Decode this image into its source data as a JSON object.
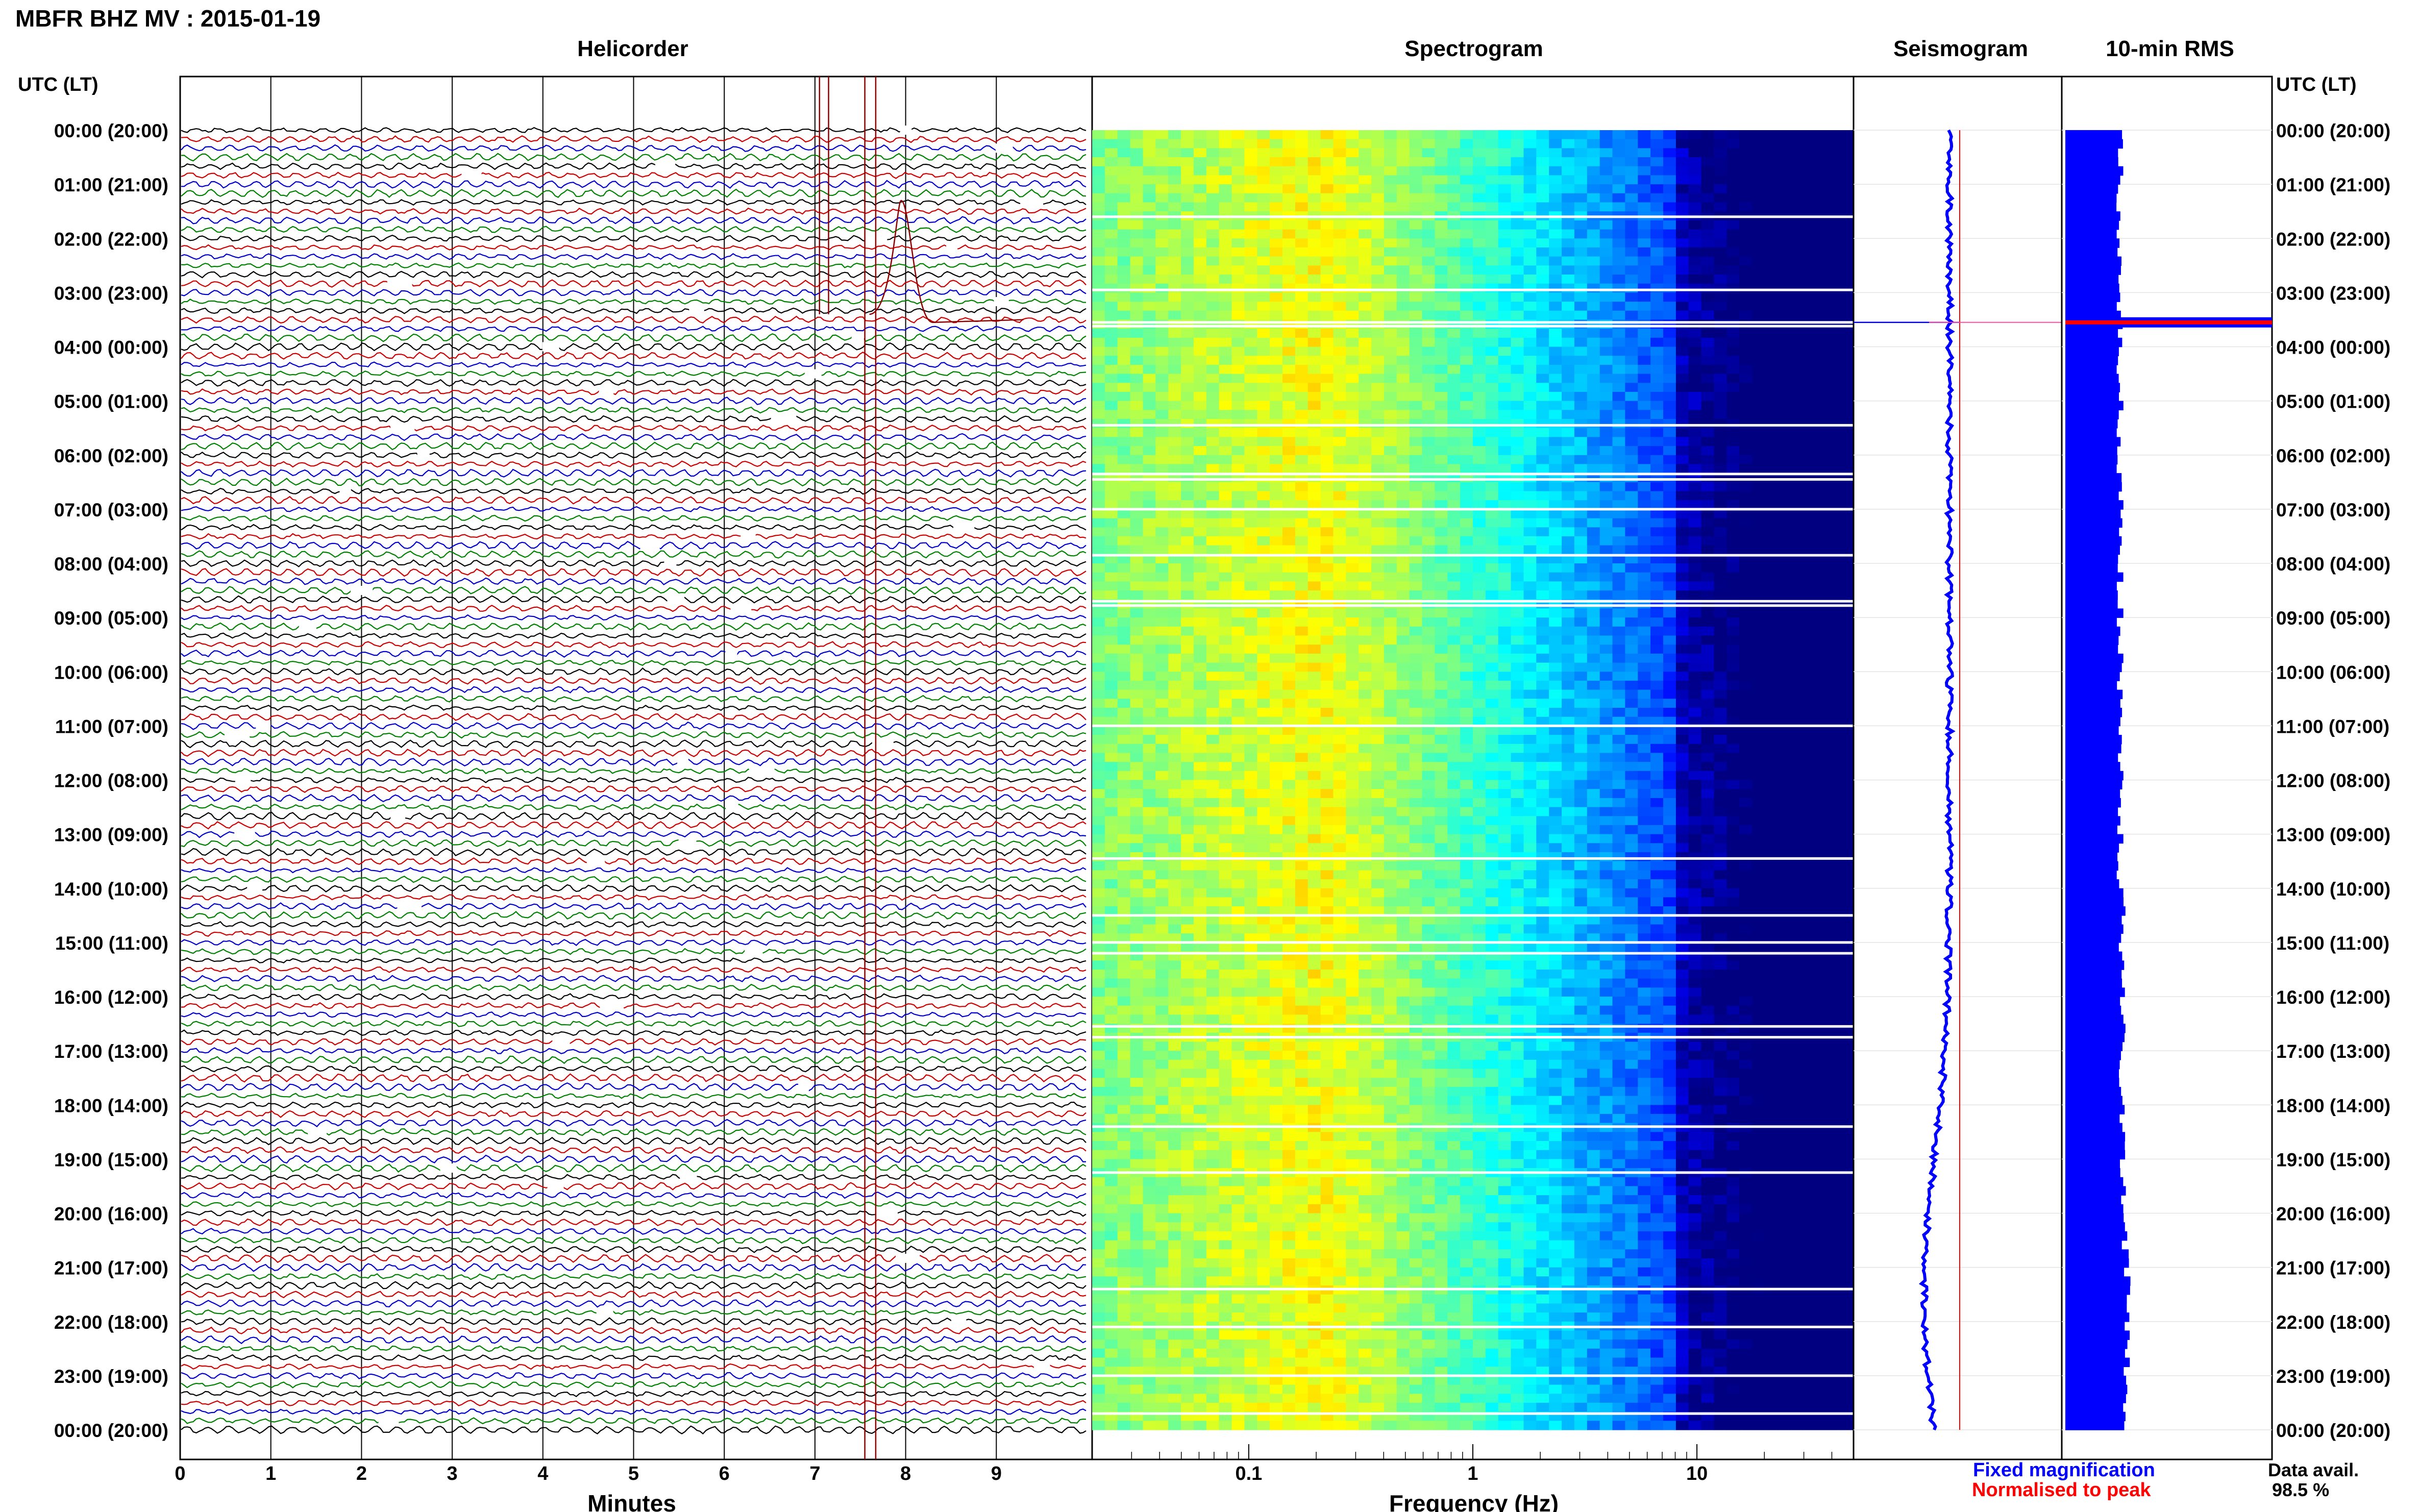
{
  "figure": {
    "title": "MBFR BHZ MV : 2015-01-19",
    "panel_titles": [
      "Helicorder",
      "Spectrogram",
      "Seismogram",
      "10-min RMS"
    ],
    "time_axis_label": "UTC (LT)",
    "helicorder_xlabel": "Minutes",
    "spectrogram_xlabel": "Frequency (Hz)",
    "legend": {
      "fixed": "Fixed magnification",
      "normalised": "Normalised to peak",
      "fixed_color": "#0000ff",
      "normalised_color": "#ff0000"
    },
    "data_avail_label": "Data avail.",
    "data_avail_value": "98.5 %"
  },
  "chart_data": {
    "type": "heatmap",
    "time_ticks": [
      "00:00 (20:00)",
      "01:00 (21:00)",
      "02:00 (22:00)",
      "03:00 (23:00)",
      "04:00 (00:00)",
      "05:00 (01:00)",
      "06:00 (02:00)",
      "07:00 (03:00)",
      "08:00 (04:00)",
      "09:00 (05:00)",
      "10:00 (06:00)",
      "11:00 (07:00)",
      "12:00 (08:00)",
      "13:00 (09:00)",
      "14:00 (10:00)",
      "15:00 (11:00)",
      "16:00 (12:00)",
      "17:00 (13:00)",
      "18:00 (14:00)",
      "19:00 (15:00)",
      "20:00 (16:00)",
      "21:00 (17:00)",
      "22:00 (18:00)",
      "23:00 (19:00)",
      "00:00 (20:00)"
    ],
    "helicorder": {
      "x_ticks": [
        "0",
        "1",
        "2",
        "3",
        "4",
        "5",
        "6",
        "7",
        "8",
        "9"
      ],
      "xlim": [
        0,
        10
      ],
      "trace_colors": [
        "#000000",
        "#cc0000",
        "#0000cc",
        "#008000"
      ],
      "rows_per_hour": 6
    },
    "spectrogram": {
      "x_scale": "log",
      "xlim": [
        0.02,
        50
      ],
      "x_ticks": [
        "0.1",
        "1",
        "10"
      ],
      "peak_frequency_hz": 0.22
    },
    "seismogram": {
      "fixed_trace_color": "#0000ff",
      "normalised_trace_color": "#ff0000"
    },
    "rms": {
      "bar_color": "#0000ff",
      "peak_hour": 3.55
    }
  }
}
